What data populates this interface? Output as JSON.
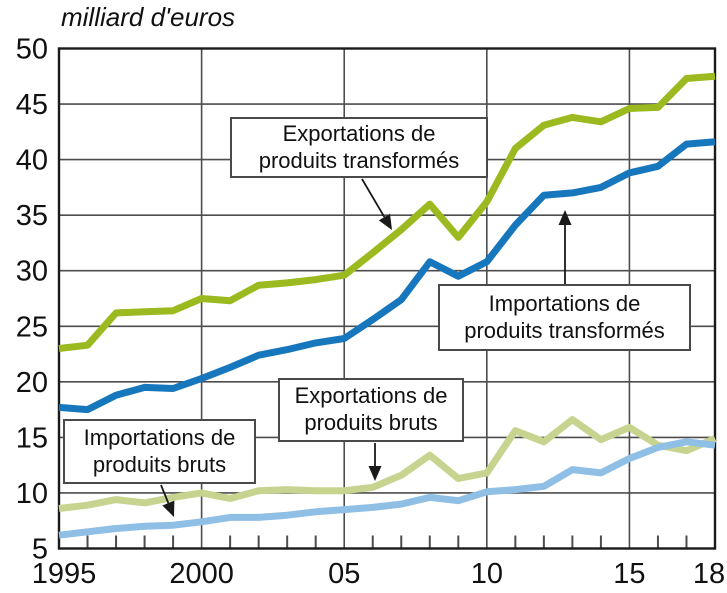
{
  "title": "milliard d'euros",
  "colors": {
    "export_transformes": "#9aba1f",
    "import_transformes": "#1777bd",
    "export_bruts": "#c7d48f",
    "import_bruts": "#90bfe6",
    "grid": "#4d4d4d",
    "border": "#1a1a1a",
    "text": "#111111"
  },
  "chart_data": {
    "type": "line",
    "title": "milliard d'euros",
    "xlabel": "",
    "ylabel": "milliard d'euros",
    "grid": true,
    "ylim": [
      5,
      50
    ],
    "y_ticks": [
      5,
      10,
      15,
      20,
      25,
      30,
      35,
      40,
      45,
      50
    ],
    "xlim": [
      1995,
      2018
    ],
    "x": [
      1995,
      1996,
      1997,
      1998,
      1999,
      2000,
      2001,
      2002,
      2003,
      2004,
      2005,
      2006,
      2007,
      2008,
      2009,
      2010,
      2011,
      2012,
      2013,
      2014,
      2015,
      2016,
      2017,
      2018
    ],
    "x_tick_labels": [
      {
        "year": 1995,
        "label": "1995"
      },
      {
        "year": 2000,
        "label": "2000"
      },
      {
        "year": 2005,
        "label": "05"
      },
      {
        "year": 2010,
        "label": "10"
      },
      {
        "year": 2015,
        "label": "15"
      },
      {
        "year": 2018,
        "label": "18"
      }
    ],
    "grid_years": [
      2000,
      2005,
      2010,
      2015
    ],
    "series": [
      {
        "name": "Exportations de produits transformés",
        "color_key": "export_transformes",
        "values": [
          23.0,
          23.3,
          26.2,
          26.3,
          26.4,
          27.5,
          27.3,
          28.7,
          28.9,
          29.2,
          29.6,
          31.6,
          33.7,
          36.0,
          33.0,
          36.2,
          41.0,
          43.1,
          43.8,
          43.4,
          44.6,
          44.7,
          47.3,
          47.5
        ]
      },
      {
        "name": "Importations de produits transformés",
        "color_key": "import_transformes",
        "values": [
          17.7,
          17.5,
          18.8,
          19.5,
          19.4,
          20.3,
          21.3,
          22.4,
          22.9,
          23.5,
          23.9,
          25.6,
          27.4,
          30.8,
          29.5,
          30.8,
          34.1,
          36.8,
          37.0,
          37.5,
          38.8,
          39.4,
          41.4,
          41.6
        ]
      },
      {
        "name": "Exportations de produits bruts",
        "color_key": "export_bruts",
        "values": [
          8.6,
          8.9,
          9.4,
          9.1,
          9.6,
          10.0,
          9.5,
          10.2,
          10.3,
          10.2,
          10.2,
          10.5,
          11.6,
          13.4,
          11.3,
          11.8,
          15.6,
          14.6,
          16.6,
          14.8,
          15.9,
          14.3,
          13.8,
          14.9
        ]
      },
      {
        "name": "Importations de produits bruts",
        "color_key": "import_bruts",
        "values": [
          6.2,
          6.5,
          6.8,
          7.0,
          7.1,
          7.4,
          7.8,
          7.8,
          8.0,
          8.3,
          8.5,
          8.7,
          9.0,
          9.6,
          9.3,
          10.1,
          10.3,
          10.6,
          12.1,
          11.8,
          13.1,
          14.1,
          14.6,
          14.3
        ]
      }
    ]
  },
  "annotations": [
    {
      "line1": "Exportations de",
      "line2": "produits transformés"
    },
    {
      "line1": "Importations de",
      "line2": "produits transformés"
    },
    {
      "line1": "Exportations de",
      "line2": "produits bruts"
    },
    {
      "line1": "Importations de",
      "line2": "produits bruts"
    }
  ]
}
